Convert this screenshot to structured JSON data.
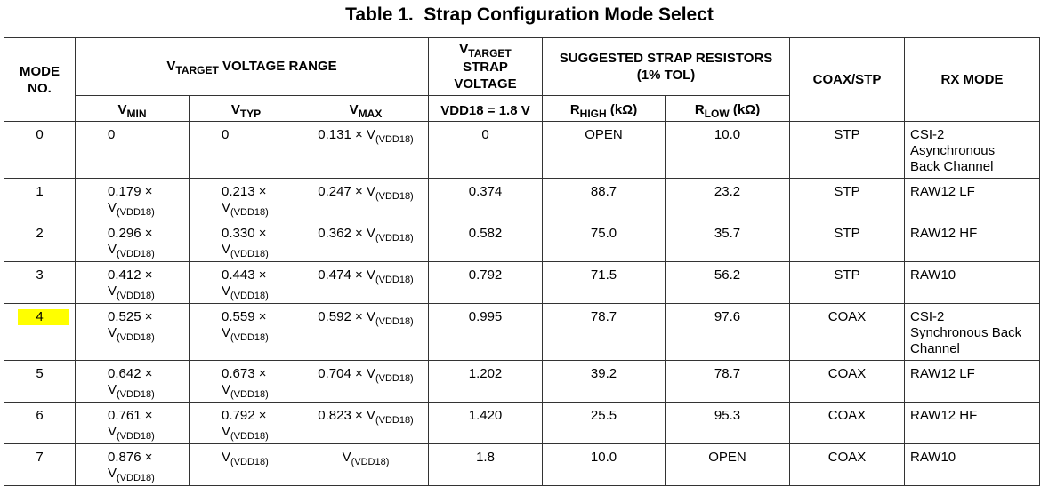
{
  "title": "Table 1.  Strap Configuration Mode Select",
  "table": {
    "header_row1": [
      [
        {
          "line": "MODE"
        },
        {
          "line": "NO."
        }
      ],
      [
        {
          "text": "V"
        },
        {
          "sub": "TARGET"
        },
        {
          "text": " VOLTAGE RANGE"
        }
      ],
      [
        {
          "text": "V"
        },
        {
          "sub": "TARGET"
        },
        {
          "line": "STRAP"
        },
        {
          "line": "VOLTAGE"
        }
      ],
      [
        {
          "line": "SUGGESTED STRAP RESISTORS"
        },
        {
          "line": "(1% TOL)"
        }
      ],
      [
        {
          "text": "COAX/STP"
        }
      ],
      [
        {
          "text": "RX MODE"
        }
      ]
    ],
    "header_row2": [
      [
        {
          "text": "V"
        },
        {
          "sub": "MIN"
        }
      ],
      [
        {
          "text": "V"
        },
        {
          "sub": "TYP"
        }
      ],
      [
        {
          "text": "V"
        },
        {
          "sub": "MAX"
        }
      ],
      [
        {
          "text": "VDD18 = 1.8 V"
        }
      ],
      [
        {
          "text": "R"
        },
        {
          "sub": "HIGH"
        },
        {
          "text": " (kΩ)"
        }
      ],
      [
        {
          "text": "R"
        },
        {
          "sub": "LOW"
        },
        {
          "text": " (kΩ)"
        }
      ]
    ],
    "rows": [
      [
        [
          {
            "text": "0"
          }
        ],
        [
          {
            "text": "0"
          }
        ],
        [
          {
            "text": "0"
          }
        ],
        [
          {
            "text": "0.131 × "
          },
          {
            "text": "V"
          },
          {
            "sub": "(VDD18)"
          }
        ],
        [
          {
            "text": "0"
          }
        ],
        [
          {
            "text": "OPEN"
          }
        ],
        [
          {
            "text": "10.0"
          }
        ],
        [
          {
            "text": "STP"
          }
        ],
        [
          {
            "line": "CSI-2"
          },
          {
            "line": "Asynchronous"
          },
          {
            "line": "Back Channel"
          }
        ]
      ],
      [
        [
          {
            "text": "1"
          }
        ],
        [
          {
            "text": "0.179 × "
          },
          {
            "text": "V"
          },
          {
            "sub": "(VDD18)"
          }
        ],
        [
          {
            "text": "0.213 × "
          },
          {
            "text": "V"
          },
          {
            "sub": "(VDD18)"
          }
        ],
        [
          {
            "text": "0.247 × "
          },
          {
            "text": "V"
          },
          {
            "sub": "(VDD18)"
          }
        ],
        [
          {
            "text": "0.374"
          }
        ],
        [
          {
            "text": "88.7"
          }
        ],
        [
          {
            "text": "23.2"
          }
        ],
        [
          {
            "text": "STP"
          }
        ],
        [
          {
            "line": "RAW12 LF"
          }
        ]
      ],
      [
        [
          {
            "text": "2"
          }
        ],
        [
          {
            "text": "0.296 × "
          },
          {
            "text": "V"
          },
          {
            "sub": "(VDD18)"
          }
        ],
        [
          {
            "text": "0.330 × "
          },
          {
            "text": "V"
          },
          {
            "sub": "(VDD18)"
          }
        ],
        [
          {
            "text": "0.362 × "
          },
          {
            "text": "V"
          },
          {
            "sub": "(VDD18)"
          }
        ],
        [
          {
            "text": "0.582"
          }
        ],
        [
          {
            "text": "75.0"
          }
        ],
        [
          {
            "text": "35.7"
          }
        ],
        [
          {
            "text": "STP"
          }
        ],
        [
          {
            "line": "RAW12 HF"
          }
        ]
      ],
      [
        [
          {
            "text": "3"
          }
        ],
        [
          {
            "text": "0.412 × "
          },
          {
            "text": "V"
          },
          {
            "sub": "(VDD18)"
          }
        ],
        [
          {
            "text": "0.443 × "
          },
          {
            "text": "V"
          },
          {
            "sub": "(VDD18)"
          }
        ],
        [
          {
            "text": "0.474 × "
          },
          {
            "text": "V"
          },
          {
            "sub": "(VDD18)"
          }
        ],
        [
          {
            "text": "0.792"
          }
        ],
        [
          {
            "text": "71.5"
          }
        ],
        [
          {
            "text": "56.2"
          }
        ],
        [
          {
            "text": "STP"
          }
        ],
        [
          {
            "line": "RAW10"
          }
        ]
      ],
      [
        [
          {
            "text": "4"
          }
        ],
        [
          {
            "text": "0.525 × "
          },
          {
            "text": "V"
          },
          {
            "sub": "(VDD18)"
          }
        ],
        [
          {
            "text": "0.559 × "
          },
          {
            "text": "V"
          },
          {
            "sub": "(VDD18)"
          }
        ],
        [
          {
            "text": "0.592 × "
          },
          {
            "text": "V"
          },
          {
            "sub": "(VDD18)"
          }
        ],
        [
          {
            "text": "0.995"
          }
        ],
        [
          {
            "text": "78.7"
          }
        ],
        [
          {
            "text": "97.6"
          }
        ],
        [
          {
            "text": "COAX"
          }
        ],
        [
          {
            "line": "CSI-2"
          },
          {
            "line": "Synchronous Back"
          },
          {
            "line": "Channel"
          }
        ]
      ],
      [
        [
          {
            "text": "5"
          }
        ],
        [
          {
            "text": "0.642 × "
          },
          {
            "text": "V"
          },
          {
            "sub": "(VDD18)"
          }
        ],
        [
          {
            "text": "0.673 × "
          },
          {
            "text": "V"
          },
          {
            "sub": "(VDD18)"
          }
        ],
        [
          {
            "text": "0.704 × "
          },
          {
            "text": "V"
          },
          {
            "sub": "(VDD18)"
          }
        ],
        [
          {
            "text": "1.202"
          }
        ],
        [
          {
            "text": "39.2"
          }
        ],
        [
          {
            "text": "78.7"
          }
        ],
        [
          {
            "text": "COAX"
          }
        ],
        [
          {
            "line": "RAW12 LF"
          }
        ]
      ],
      [
        [
          {
            "text": "6"
          }
        ],
        [
          {
            "text": "0.761 × "
          },
          {
            "text": "V"
          },
          {
            "sub": "(VDD18)"
          }
        ],
        [
          {
            "text": "0.792 × "
          },
          {
            "text": "V"
          },
          {
            "sub": "(VDD18)"
          }
        ],
        [
          {
            "text": "0.823 × "
          },
          {
            "text": "V"
          },
          {
            "sub": "(VDD18)"
          }
        ],
        [
          {
            "text": "1.420"
          }
        ],
        [
          {
            "text": "25.5"
          }
        ],
        [
          {
            "text": "95.3"
          }
        ],
        [
          {
            "text": "COAX"
          }
        ],
        [
          {
            "line": "RAW12 HF"
          }
        ]
      ],
      [
        [
          {
            "text": "7"
          }
        ],
        [
          {
            "text": "0.876 × "
          },
          {
            "text": "V"
          },
          {
            "sub": "(VDD18)"
          }
        ],
        [
          {
            "text": "V"
          },
          {
            "sub": "(VDD18)"
          }
        ],
        [
          {
            "text": "V"
          },
          {
            "sub": "(VDD18)"
          }
        ],
        [
          {
            "text": "1.8"
          }
        ],
        [
          {
            "text": "10.0"
          }
        ],
        [
          {
            "text": "OPEN"
          }
        ],
        [
          {
            "text": "COAX"
          }
        ],
        [
          {
            "line": "RAW10"
          }
        ]
      ]
    ]
  }
}
